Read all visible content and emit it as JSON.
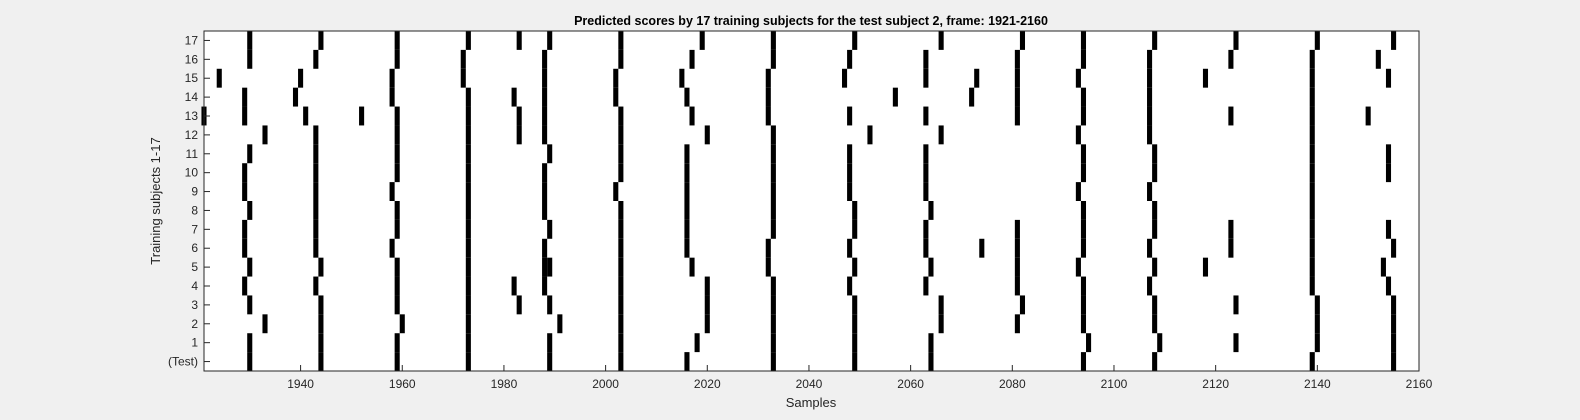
{
  "chart_data": {
    "type": "heatmap",
    "title": "Predicted scores by 17 training subjects for the test subject 2, frame: 1921-2160",
    "xlabel": "Samples",
    "ylabel": "Training subjects 1-17",
    "xlim": [
      1921,
      2160
    ],
    "x_ticks": [
      1940,
      1960,
      1980,
      2000,
      2020,
      2040,
      2060,
      2080,
      2100,
      2120,
      2140,
      2160
    ],
    "rows": [
      "(Test)",
      "1",
      "2",
      "3",
      "4",
      "5",
      "6",
      "7",
      "8",
      "9",
      "10",
      "11",
      "12",
      "13",
      "14",
      "15",
      "16",
      "17"
    ],
    "value_encoding": "black cell = predicted event (1), white = 0",
    "colors": {
      "event": "#000000",
      "background": "#ffffff"
    },
    "grid": false,
    "events": [
      {
        "row": "(Test)",
        "samples": [
          1930,
          1944,
          1959,
          1973,
          1989,
          2003,
          2016,
          2033,
          2049,
          2064,
          2094,
          2108,
          2139,
          2155
        ]
      },
      {
        "row": "1",
        "samples": [
          1930,
          1944,
          1959,
          1973,
          1989,
          2003,
          2018,
          2033,
          2049,
          2064,
          2095,
          2109,
          2124,
          2140,
          2155
        ]
      },
      {
        "row": "2",
        "samples": [
          1933,
          1944,
          1960,
          1973,
          1991,
          2003,
          2020,
          2033,
          2049,
          2066,
          2081,
          2094,
          2108,
          2140,
          2155
        ]
      },
      {
        "row": "3",
        "samples": [
          1930,
          1944,
          1959,
          1973,
          1983,
          1989,
          2003,
          2020,
          2033,
          2049,
          2066,
          2082,
          2094,
          2108,
          2124,
          2140,
          2155
        ]
      },
      {
        "row": "4",
        "samples": [
          1929,
          1943,
          1959,
          1973,
          1982,
          1988,
          2003,
          2020,
          2033,
          2048,
          2063,
          2081,
          2094,
          2107,
          2139,
          2154
        ]
      },
      {
        "row": "5",
        "samples": [
          1930,
          1944,
          1959,
          1973,
          1988,
          1989,
          2003,
          2017,
          2032,
          2049,
          2064,
          2081,
          2093,
          2108,
          2118,
          2139,
          2153
        ]
      },
      {
        "row": "6",
        "samples": [
          1929,
          1943,
          1958,
          1973,
          1988,
          2003,
          2016,
          2032,
          2048,
          2063,
          2074,
          2081,
          2094,
          2107,
          2123,
          2139,
          2155
        ]
      },
      {
        "row": "7",
        "samples": [
          1929,
          1943,
          1959,
          1973,
          1989,
          2003,
          2016,
          2033,
          2049,
          2063,
          2081,
          2094,
          2108,
          2123,
          2139,
          2154
        ]
      },
      {
        "row": "8",
        "samples": [
          1930,
          1943,
          1959,
          1973,
          1988,
          2003,
          2016,
          2033,
          2049,
          2064,
          2094,
          2108,
          2139
        ]
      },
      {
        "row": "9",
        "samples": [
          1929,
          1943,
          1958,
          1973,
          1988,
          2002,
          2016,
          2033,
          2048,
          2063,
          2093,
          2107,
          2139
        ]
      },
      {
        "row": "10",
        "samples": [
          1929,
          1943,
          1959,
          1973,
          1988,
          2003,
          2016,
          2033,
          2048,
          2063,
          2094,
          2108,
          2139,
          2154
        ]
      },
      {
        "row": "11",
        "samples": [
          1930,
          1943,
          1959,
          1973,
          1989,
          2003,
          2016,
          2033,
          2048,
          2063,
          2094,
          2108,
          2139,
          2154
        ]
      },
      {
        "row": "12",
        "samples": [
          1933,
          1943,
          1959,
          1973,
          1983,
          1988,
          2003,
          2020,
          2033,
          2052,
          2066,
          2093,
          2107,
          2139
        ]
      },
      {
        "row": "13",
        "samples": [
          1921,
          1929,
          1941,
          1952,
          1959,
          1973,
          1983,
          1988,
          2003,
          2017,
          2032,
          2048,
          2063,
          2081,
          2094,
          2107,
          2123,
          2139,
          2150
        ]
      },
      {
        "row": "14",
        "samples": [
          1929,
          1939,
          1958,
          1973,
          1982,
          1988,
          2002,
          2016,
          2032,
          2057,
          2072,
          2081,
          2094,
          2107,
          2139
        ]
      },
      {
        "row": "15",
        "samples": [
          1924,
          1940,
          1958,
          1972,
          1988,
          2002,
          2015,
          2032,
          2047,
          2063,
          2073,
          2081,
          2093,
          2107,
          2118,
          2139,
          2154
        ]
      },
      {
        "row": "16",
        "samples": [
          1930,
          1943,
          1959,
          1972,
          1988,
          2003,
          2017,
          2033,
          2048,
          2063,
          2081,
          2094,
          2107,
          2123,
          2139,
          2152
        ]
      },
      {
        "row": "17",
        "samples": [
          1930,
          1944,
          1959,
          1973,
          1983,
          1989,
          2003,
          2019,
          2033,
          2049,
          2066,
          2082,
          2094,
          2108,
          2124,
          2140,
          2155
        ]
      }
    ]
  }
}
